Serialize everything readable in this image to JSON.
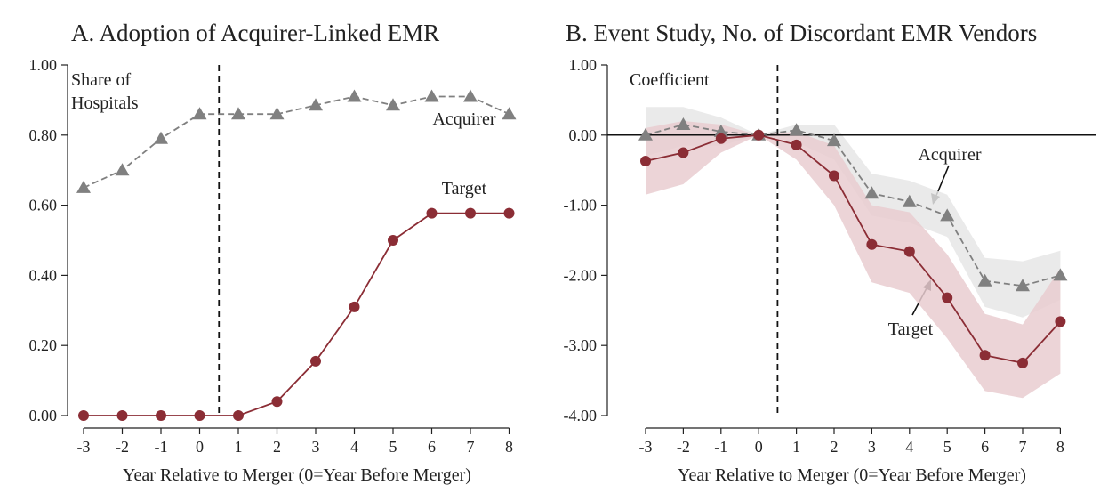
{
  "chart_data": [
    {
      "type": "line",
      "title": "A. Adoption of Acquirer-Linked EMR",
      "xlabel": "Year Relative to Merger (0=Year Before Merger)",
      "ylabel": "Share of Hospitals",
      "ylabel_lines": [
        "Share of",
        "Hospitals"
      ],
      "ylim": [
        0,
        1
      ],
      "y_ticks": [
        "0.00",
        "0.20",
        "0.40",
        "0.60",
        "0.80",
        "1.00"
      ],
      "x": [
        -3,
        -2,
        -1,
        0,
        1,
        2,
        3,
        4,
        5,
        6,
        7,
        8
      ],
      "x_ticks": [
        "-3",
        "-2",
        "-1",
        "0",
        "1",
        "2",
        "3",
        "4",
        "5",
        "6",
        "7",
        "8"
      ],
      "vline_at": 0.5,
      "series": [
        {
          "name": "Acquirer",
          "color": "#808080",
          "marker": "triangle",
          "line": "dashed",
          "values": [
            0.65,
            0.7,
            0.79,
            0.86,
            0.86,
            0.86,
            0.885,
            0.91,
            0.885,
            0.91,
            0.91,
            0.86
          ]
        },
        {
          "name": "Target",
          "color": "#8b2d35",
          "marker": "circle",
          "line": "solid",
          "values": [
            0.0,
            0.0,
            0.0,
            0.0,
            0.0,
            0.04,
            0.155,
            0.31,
            0.5,
            0.577,
            0.577,
            0.577
          ]
        }
      ]
    },
    {
      "type": "line",
      "title": "B. Event Study, No. of Discordant EMR Vendors",
      "xlabel": "Year Relative to Merger (0=Year Before Merger)",
      "ylabel": "Coefficient",
      "ylim": [
        -4,
        1
      ],
      "y_ticks": [
        "-4.00",
        "-3.00",
        "-2.00",
        "-1.00",
        "0.00",
        "1.00"
      ],
      "x": [
        -3,
        -2,
        -1,
        0,
        1,
        2,
        3,
        4,
        5,
        6,
        7,
        8
      ],
      "x_ticks": [
        "-3",
        "-2",
        "-1",
        "0",
        "1",
        "2",
        "3",
        "4",
        "5",
        "6",
        "7",
        "8"
      ],
      "vline_at": 0.5,
      "hline_at": 0,
      "series": [
        {
          "name": "Acquirer",
          "color": "#808080",
          "band_color": "#e6e6e6",
          "marker": "triangle",
          "line": "dashed",
          "values": [
            0.0,
            0.15,
            0.05,
            0.0,
            0.07,
            -0.08,
            -0.83,
            -0.95,
            -1.15,
            -2.08,
            -2.15,
            -2.0
          ],
          "ci_low": [
            -0.3,
            -0.15,
            -0.15,
            0.0,
            -0.1,
            -0.35,
            -1.15,
            -1.25,
            -1.45,
            -2.45,
            -2.6,
            -2.35
          ],
          "ci_high": [
            0.4,
            0.4,
            0.25,
            0.0,
            0.15,
            0.15,
            -0.55,
            -0.65,
            -0.85,
            -1.75,
            -1.8,
            -1.65
          ]
        },
        {
          "name": "Target",
          "color": "#8b2d35",
          "band_color": "#e9cdd0",
          "marker": "circle",
          "line": "solid",
          "values": [
            -0.37,
            -0.25,
            -0.05,
            0.0,
            -0.14,
            -0.58,
            -1.56,
            -1.66,
            -2.32,
            -3.14,
            -3.25,
            -2.66
          ],
          "ci_low": [
            -0.85,
            -0.7,
            -0.25,
            0.0,
            -0.35,
            -1.0,
            -2.1,
            -2.25,
            -2.9,
            -3.65,
            -3.75,
            -3.4
          ],
          "ci_high": [
            0.1,
            0.2,
            0.15,
            0.0,
            0.05,
            -0.15,
            -1.0,
            -1.1,
            -1.7,
            -2.55,
            -2.7,
            -1.9
          ]
        }
      ]
    }
  ],
  "annotations": {
    "A_acquirer": "Acquirer",
    "A_target": "Target",
    "B_acquirer": "Acquirer",
    "B_target": "Target"
  }
}
